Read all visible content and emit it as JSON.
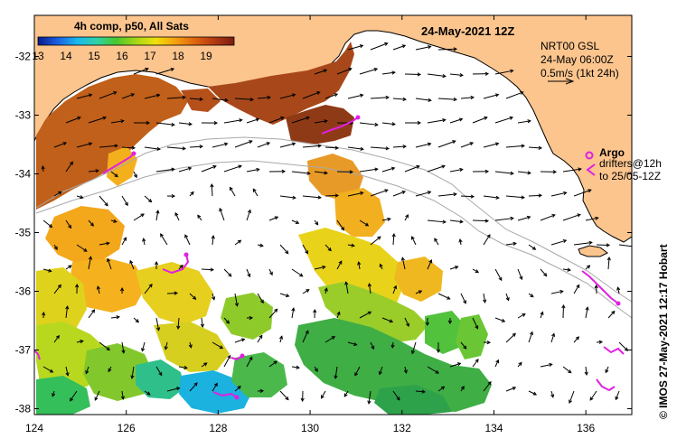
{
  "title": "24-May-2021 12Z",
  "colorbar": {
    "title": "4h comp, p50, All Sats",
    "min": 13,
    "max": 20,
    "ticks": [
      "13",
      "14",
      "15",
      "16",
      "17",
      "18",
      "19"
    ],
    "colors": [
      "#0a1a8c",
      "#1b5fe0",
      "#19b8f0",
      "#2fd2a6",
      "#49c72e",
      "#a6d616",
      "#efe10b",
      "#f5a00f",
      "#e06410",
      "#b23a10",
      "#7a1d10"
    ]
  },
  "currents_info": {
    "line1": "NRT00 GSL",
    "line2": "24-May 06:00Z",
    "line3": "0.5m/s (1kt 24h)"
  },
  "argo": {
    "label": "Argo",
    "line2": "drifters@12h",
    "line3": "to 25/05-12Z",
    "color": "#e020e0"
  },
  "credit": "© IMOS 27-May-2021 12:17 Hobart",
  "axes": {
    "xticks": [
      "124",
      "126",
      "128",
      "130",
      "132",
      "134",
      "136"
    ],
    "yticks": [
      "-32",
      "-33",
      "-34",
      "-35",
      "-36",
      "-37",
      "-38"
    ]
  },
  "colors": {
    "land": "#fcc58e",
    "coast": "#000000",
    "bathy": "#a9a9a9"
  }
}
